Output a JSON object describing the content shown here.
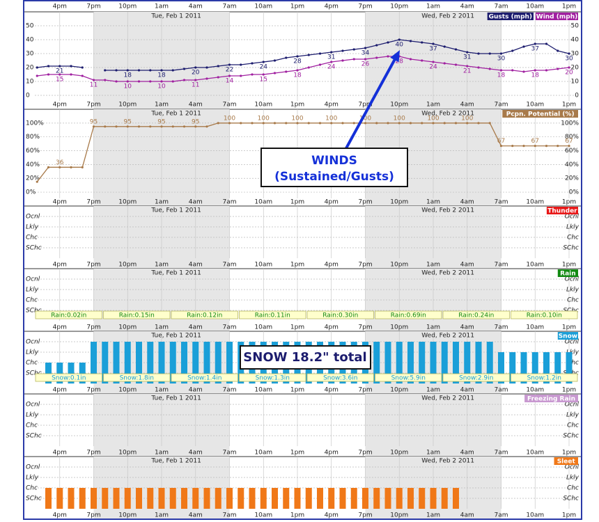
{
  "chart_data": {
    "type": "meteogram",
    "xlim": [
      -0.2,
      47.8
    ],
    "xticks": [
      {
        "value": 2,
        "label": "4pm"
      },
      {
        "value": 5,
        "label": "7pm"
      },
      {
        "value": 8,
        "label": "10pm"
      },
      {
        "value": 11,
        "label": "1am"
      },
      {
        "value": 14,
        "label": "4am"
      },
      {
        "value": 17,
        "label": "7am"
      },
      {
        "value": 20,
        "label": "10am"
      },
      {
        "value": 23,
        "label": "1pm"
      },
      {
        "value": 26,
        "label": "4pm"
      },
      {
        "value": 29,
        "label": "7pm"
      },
      {
        "value": 32,
        "label": "10pm"
      },
      {
        "value": 35,
        "label": "1am"
      },
      {
        "value": 38,
        "label": "4am"
      },
      {
        "value": 41,
        "label": "7am"
      },
      {
        "value": 44,
        "label": "10am"
      },
      {
        "value": 47,
        "label": "1pm"
      }
    ],
    "dates": [
      "Tue, Feb 1 2011",
      "Wed, Feb 2 2011"
    ],
    "night": [
      [
        5,
        17
      ],
      [
        29,
        41
      ]
    ],
    "grid": true,
    "annotations": [
      "WINDS",
      "(Sustained/Gusts)",
      "SNOW 18.2\" total"
    ],
    "panels": [
      {
        "type": "line",
        "ylim": [
          -4,
          60
        ],
        "yticks": [
          0,
          10,
          20,
          30,
          40,
          50
        ],
        "series": [
          {
            "name": "Gusts (mph)",
            "color": "#1c1c6e",
            "values": [
              20,
              21,
              21,
              21,
              20,
              null,
              18,
              18,
              18,
              18,
              18,
              18,
              18,
              19,
              20,
              20,
              21,
              22,
              22,
              23,
              24,
              25,
              27,
              28,
              29,
              30,
              31,
              32,
              33,
              34,
              36,
              38,
              40,
              39,
              38,
              37,
              35,
              33,
              31,
              30,
              30,
              30,
              32,
              35,
              37,
              37,
              32,
              30
            ]
          },
          {
            "name": "Wind (mph)",
            "color": "#a020a0",
            "values": [
              14,
              15,
              15,
              15,
              14,
              11,
              11,
              10,
              10,
              10,
              10,
              10,
              10,
              11,
              11,
              12,
              13,
              14,
              14,
              15,
              15,
              16,
              17,
              18,
              20,
              22,
              24,
              25,
              26,
              26,
              27,
              28,
              28,
              26,
              25,
              24,
              23,
              22,
              21,
              20,
              19,
              18,
              18,
              17,
              18,
              18,
              19,
              20
            ]
          }
        ]
      },
      {
        "type": "line",
        "ylim": [
          -9,
          120
        ],
        "yticks": [
          {
            "value": 0,
            "label": "0%"
          },
          {
            "value": 20,
            "label": "20%"
          },
          {
            "value": 40,
            "label": "40%"
          },
          {
            "value": 60,
            "label": "60%"
          },
          {
            "value": 80,
            "label": "80%"
          },
          {
            "value": 100,
            "label": "100%"
          }
        ],
        "series": [
          {
            "name": "Pcpn. Potential (%)",
            "color": "#a87a4a",
            "values": [
              15,
              36,
              36,
              36,
              36,
              95,
              95,
              95,
              95,
              95,
              95,
              95,
              95,
              95,
              95,
              95,
              100,
              100,
              100,
              100,
              100,
              100,
              100,
              100,
              100,
              100,
              100,
              100,
              100,
              100,
              100,
              100,
              100,
              100,
              100,
              100,
              100,
              100,
              100,
              100,
              100,
              67,
              67,
              67,
              67,
              67,
              67,
              67
            ]
          }
        ]
      },
      {
        "type": "bar",
        "title": "Thunder",
        "color": "#e81818",
        "ylim": [
          0,
          5
        ],
        "yticks": [
          {
            "value": 1,
            "label": "SChc"
          },
          {
            "value": 2,
            "label": "Chc"
          },
          {
            "value": 3,
            "label": "Lkly"
          },
          {
            "value": 4,
            "label": "Ocnl"
          }
        ]
      },
      {
        "type": "bar",
        "title": "Rain",
        "color": "#138a13",
        "ylim": [
          0,
          5
        ],
        "yticks": [
          {
            "value": 1,
            "label": "SChc"
          },
          {
            "value": 2,
            "label": "Chc"
          },
          {
            "value": 3,
            "label": "Lkly"
          },
          {
            "value": 4,
            "label": "Ocnl"
          }
        ],
        "amounts": [
          "Rain:0.02in",
          "Rain:0.15in",
          "Rain:0.12in",
          "Rain:0.11in",
          "Rain:0.30in",
          "Rain:0.69in",
          "Rain:0.24in",
          "Rain:0.10in"
        ]
      },
      {
        "type": "bar",
        "title": "Snow",
        "color": "#1a9fd8",
        "ylim": [
          0,
          5
        ],
        "yticks": [
          {
            "value": 1,
            "label": "SChc"
          },
          {
            "value": 2,
            "label": "Chc"
          },
          {
            "value": 3,
            "label": "Lkly"
          },
          {
            "value": 4,
            "label": "Ocnl"
          }
        ],
        "values": [
          null,
          2,
          2,
          2,
          2,
          4,
          4,
          4,
          4,
          4,
          4,
          4,
          4,
          4,
          4,
          4,
          4,
          4,
          4,
          4,
          4,
          4,
          4,
          4,
          4,
          4,
          4,
          4,
          4,
          4,
          4,
          4,
          4,
          4,
          4,
          4,
          4,
          4,
          4,
          4,
          4,
          3,
          3,
          3,
          3,
          3,
          3,
          3
        ],
        "amounts": [
          "Snow:0.1in",
          "Snow:1.8in",
          "Snow:1.4in",
          "Snow:1.3in",
          "Snow:3.6in",
          "Snow:5.9in",
          "Snow:2.9in",
          "Snow:1.2in"
        ]
      },
      {
        "type": "bar",
        "title": "Freezing Rain",
        "color": "#c898d0",
        "ylim": [
          0,
          5
        ],
        "yticks": [
          {
            "value": 1,
            "label": "SChc"
          },
          {
            "value": 2,
            "label": "Chc"
          },
          {
            "value": 3,
            "label": "Lkly"
          },
          {
            "value": 4,
            "label": "Ocnl"
          }
        ]
      },
      {
        "type": "bar",
        "title": "Sleet",
        "color": "#f07818",
        "ylim": [
          0,
          5
        ],
        "yticks": [
          {
            "value": 1,
            "label": "SChc"
          },
          {
            "value": 2,
            "label": "Chc"
          },
          {
            "value": 3,
            "label": "Lkly"
          },
          {
            "value": 4,
            "label": "Ocnl"
          }
        ],
        "values": [
          null,
          2,
          2,
          2,
          2,
          2,
          2,
          2,
          2,
          2,
          2,
          2,
          2,
          2,
          2,
          2,
          2,
          2,
          2,
          2,
          2,
          2,
          2,
          2,
          2,
          2,
          2,
          2,
          2,
          2,
          2,
          2,
          2,
          2,
          2,
          2,
          2,
          2,
          null,
          null,
          null,
          null,
          null,
          null,
          null,
          null,
          null,
          null
        ]
      }
    ]
  }
}
